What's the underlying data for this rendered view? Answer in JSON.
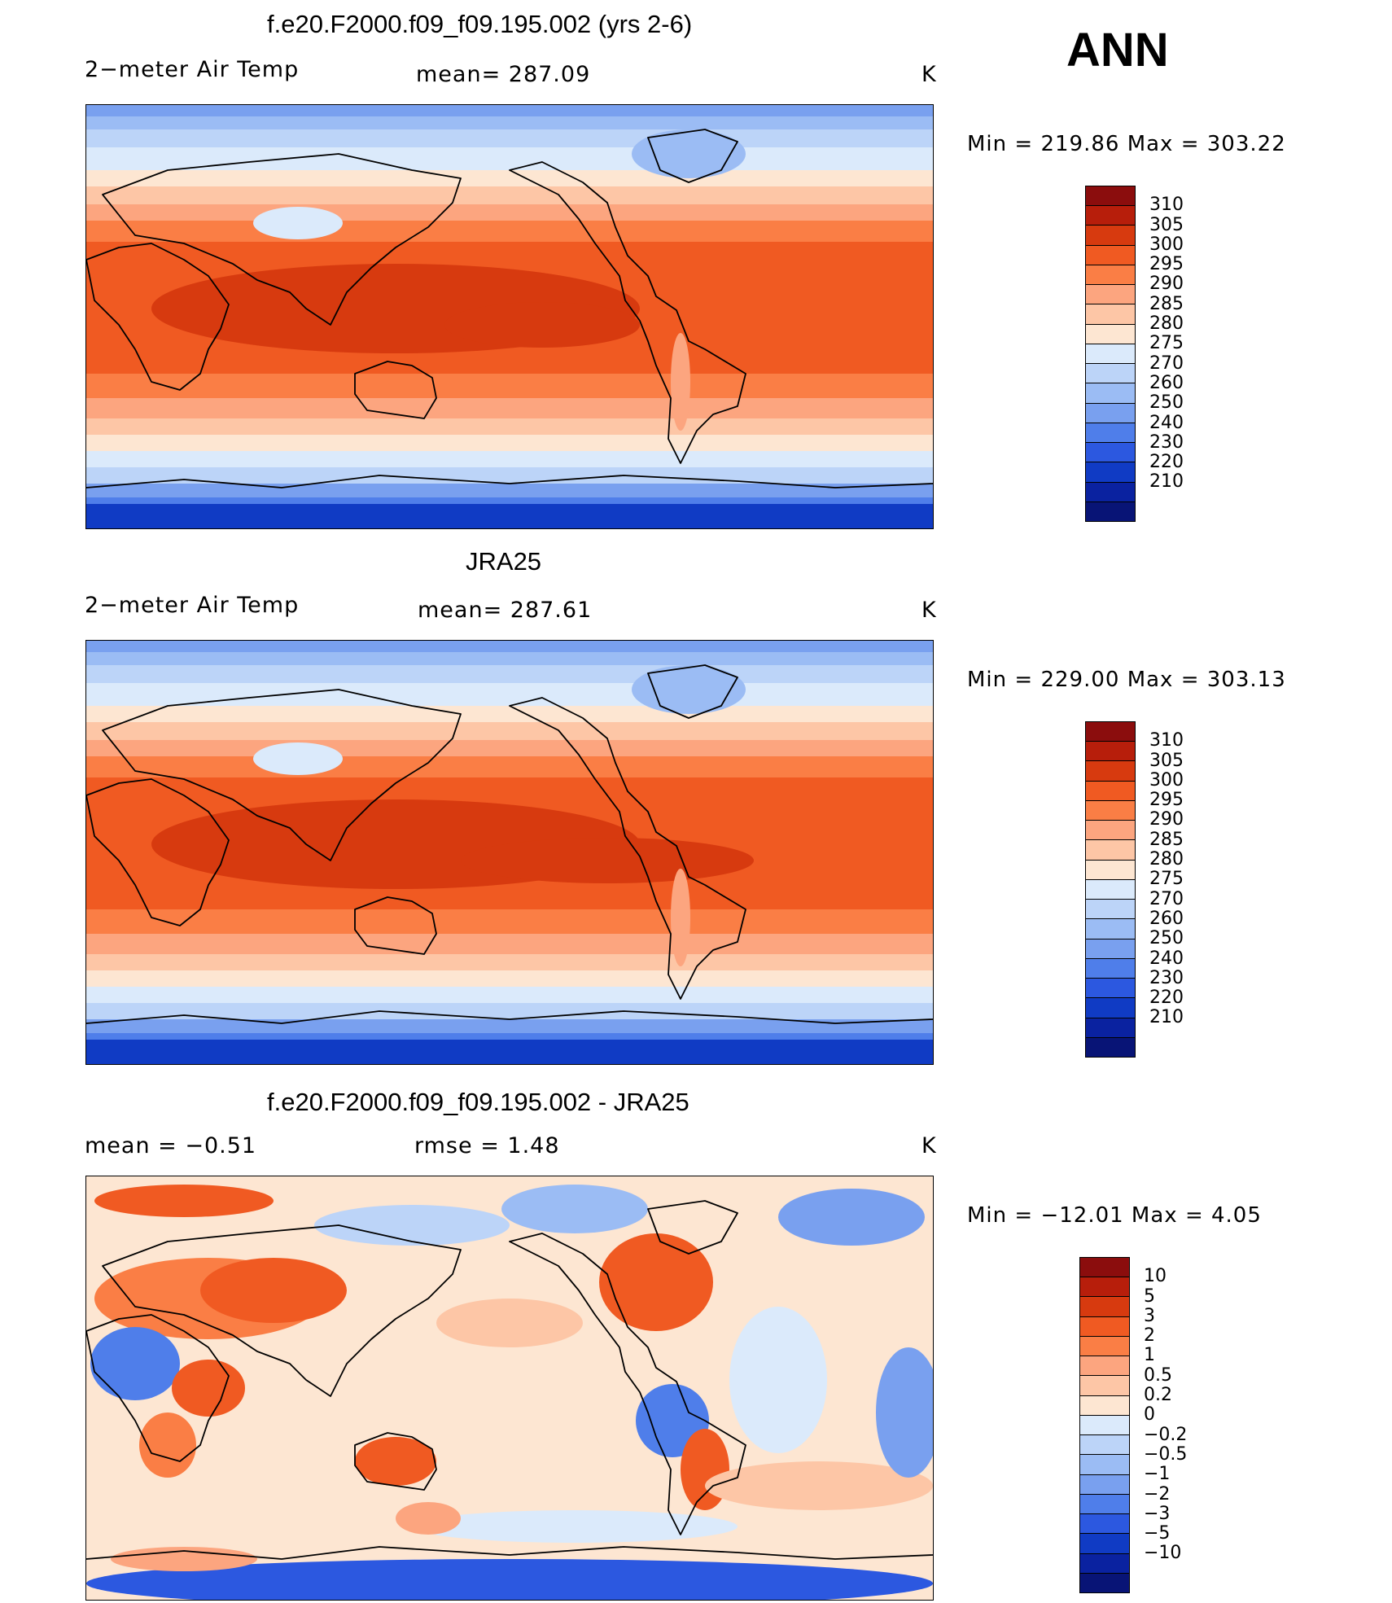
{
  "season": "ANN",
  "panels": [
    {
      "title": "f.e20.F2000.f09_f09.195.002 (yrs 2-6)",
      "left_label": "2−meter Air Temp",
      "center_label": "mean=  287.09",
      "units": "K",
      "minmax": "Min  =  219.86  Max  =  303.22",
      "palette": "abs"
    },
    {
      "title": "JRA25",
      "left_label": "2−meter Air Temp",
      "center_label": "mean=  287.61",
      "units": "K",
      "minmax": "Min  =  229.00  Max  =  303.13",
      "palette": "abs"
    },
    {
      "title": "f.e20.F2000.f09_f09.195.002 - JRA25",
      "left_label": "mean  =    −0.51",
      "center_label": "rmse  =     1.48",
      "units": "K",
      "minmax": "Min  =  −12.01  Max  =      4.05",
      "palette": "diff"
    }
  ],
  "chart_data": [
    {
      "type": "heatmap",
      "title": "f.e20.F2000.f09_f09.195.002 (yrs 2-6)",
      "variable": "2-meter Air Temp",
      "units": "K",
      "mean": 287.09,
      "min": 219.86,
      "max": 303.22,
      "colorbar_levels": [
        "310",
        "305",
        "300",
        "295",
        "290",
        "285",
        "280",
        "275",
        "270",
        "260",
        "250",
        "240",
        "230",
        "220",
        "210"
      ],
      "colorbar_colors": [
        "#8b0d0d",
        "#b71e0b",
        "#d73a0f",
        "#f05a22",
        "#fa7e45",
        "#fca57f",
        "#fdc6a6",
        "#fde6d2",
        "#dbeafb",
        "#bcd4f8",
        "#9bbcf4",
        "#79a0ef",
        "#4f7eea",
        "#2c58e0",
        "#103bc4",
        "#0a22a0",
        "#081476"
      ]
    },
    {
      "type": "heatmap",
      "title": "JRA25",
      "variable": "2-meter Air Temp",
      "units": "K",
      "mean": 287.61,
      "min": 229.0,
      "max": 303.13,
      "colorbar_levels": [
        "310",
        "305",
        "300",
        "295",
        "290",
        "285",
        "280",
        "275",
        "270",
        "260",
        "250",
        "240",
        "230",
        "220",
        "210"
      ],
      "colorbar_colors": [
        "#8b0d0d",
        "#b71e0b",
        "#d73a0f",
        "#f05a22",
        "#fa7e45",
        "#fca57f",
        "#fdc6a6",
        "#fde6d2",
        "#dbeafb",
        "#bcd4f8",
        "#9bbcf4",
        "#79a0ef",
        "#4f7eea",
        "#2c58e0",
        "#103bc4",
        "#0a22a0",
        "#081476"
      ]
    },
    {
      "type": "heatmap",
      "title": "f.e20.F2000.f09_f09.195.002 - JRA25",
      "variable": "2-meter Air Temp difference",
      "units": "K",
      "mean": -0.51,
      "rmse": 1.48,
      "min": -12.01,
      "max": 4.05,
      "colorbar_levels": [
        "10",
        "5",
        "3",
        "2",
        "1",
        "0.5",
        "0.2",
        "0",
        "−0.2",
        "−0.5",
        "−1",
        "−2",
        "−3",
        "−5",
        "−10"
      ],
      "colorbar_colors": [
        "#8b0d0d",
        "#b71e0b",
        "#d73a0f",
        "#f05a22",
        "#fa7e45",
        "#fca57f",
        "#fdc6a6",
        "#fde6d2",
        "#dbeafb",
        "#bcd4f8",
        "#9bbcf4",
        "#79a0ef",
        "#4f7eea",
        "#2c58e0",
        "#103bc4",
        "#0a22a0",
        "#081476"
      ]
    }
  ]
}
